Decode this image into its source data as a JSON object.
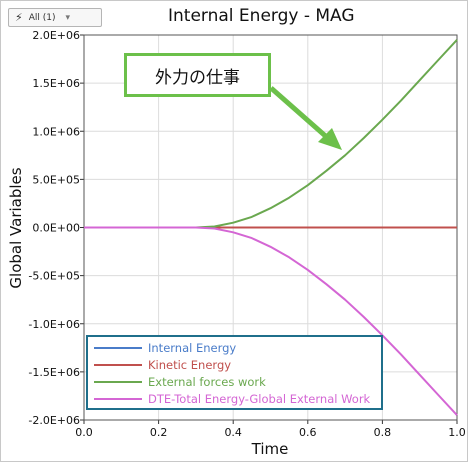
{
  "toolbar": {
    "filter_label": "All (1)",
    "filter_icon": "lightning-icon"
  },
  "chart_data": {
    "type": "line",
    "title": "Internal Energy - MAG",
    "xlabel": "Time",
    "ylabel": "Global Variables",
    "xlim": [
      0.0,
      1.0
    ],
    "ylim": [
      -2000000,
      2000000
    ],
    "xticks": [
      "0.0",
      "0.2",
      "0.4",
      "0.6",
      "0.8",
      "1.0"
    ],
    "yticks": [
      "2.0E+06",
      "1.5E+06",
      "1.0E+06",
      "5.0E+05",
      "0.0E+00",
      "-5.0E+05",
      "-1.0E+06",
      "-1.5E+06",
      "-2.0E+06"
    ],
    "x": [
      0.0,
      0.2,
      0.3,
      0.35,
      0.4,
      0.45,
      0.5,
      0.55,
      0.6,
      0.65,
      0.7,
      0.75,
      0.8,
      0.85,
      0.9,
      0.95,
      1.0
    ],
    "series": [
      {
        "name": "Internal Energy",
        "color": "#4a7cc9",
        "values": [
          0,
          0,
          0,
          0,
          0,
          0,
          0,
          0,
          0,
          0,
          0,
          0,
          0,
          0,
          0,
          0,
          0
        ]
      },
      {
        "name": "Kinetic Energy",
        "color": "#c0504d",
        "values": [
          0,
          0,
          0,
          0,
          0,
          0,
          0,
          0,
          0,
          0,
          0,
          0,
          0,
          0,
          0,
          0,
          0
        ]
      },
      {
        "name": "External forces work",
        "color": "#6aa84f",
        "values": [
          0,
          0,
          0,
          10000,
          50000,
          110000,
          200000,
          310000,
          440000,
          590000,
          750000,
          930000,
          1120000,
          1320000,
          1530000,
          1740000,
          1950000
        ]
      },
      {
        "name": "DTE-Total Energy-Global External Work",
        "color": "#d466d4",
        "values": [
          0,
          0,
          0,
          -10000,
          -50000,
          -110000,
          -200000,
          -310000,
          -440000,
          -590000,
          -750000,
          -930000,
          -1120000,
          -1320000,
          -1530000,
          -1740000,
          -1950000
        ]
      }
    ],
    "grid": true,
    "legend_position": "bottom-left"
  },
  "annotation": {
    "text": "外力の仕事",
    "box_color": "#6cc04a",
    "arrow_color": "#6cc04a"
  },
  "legend_border_color": "#1f6f8b"
}
